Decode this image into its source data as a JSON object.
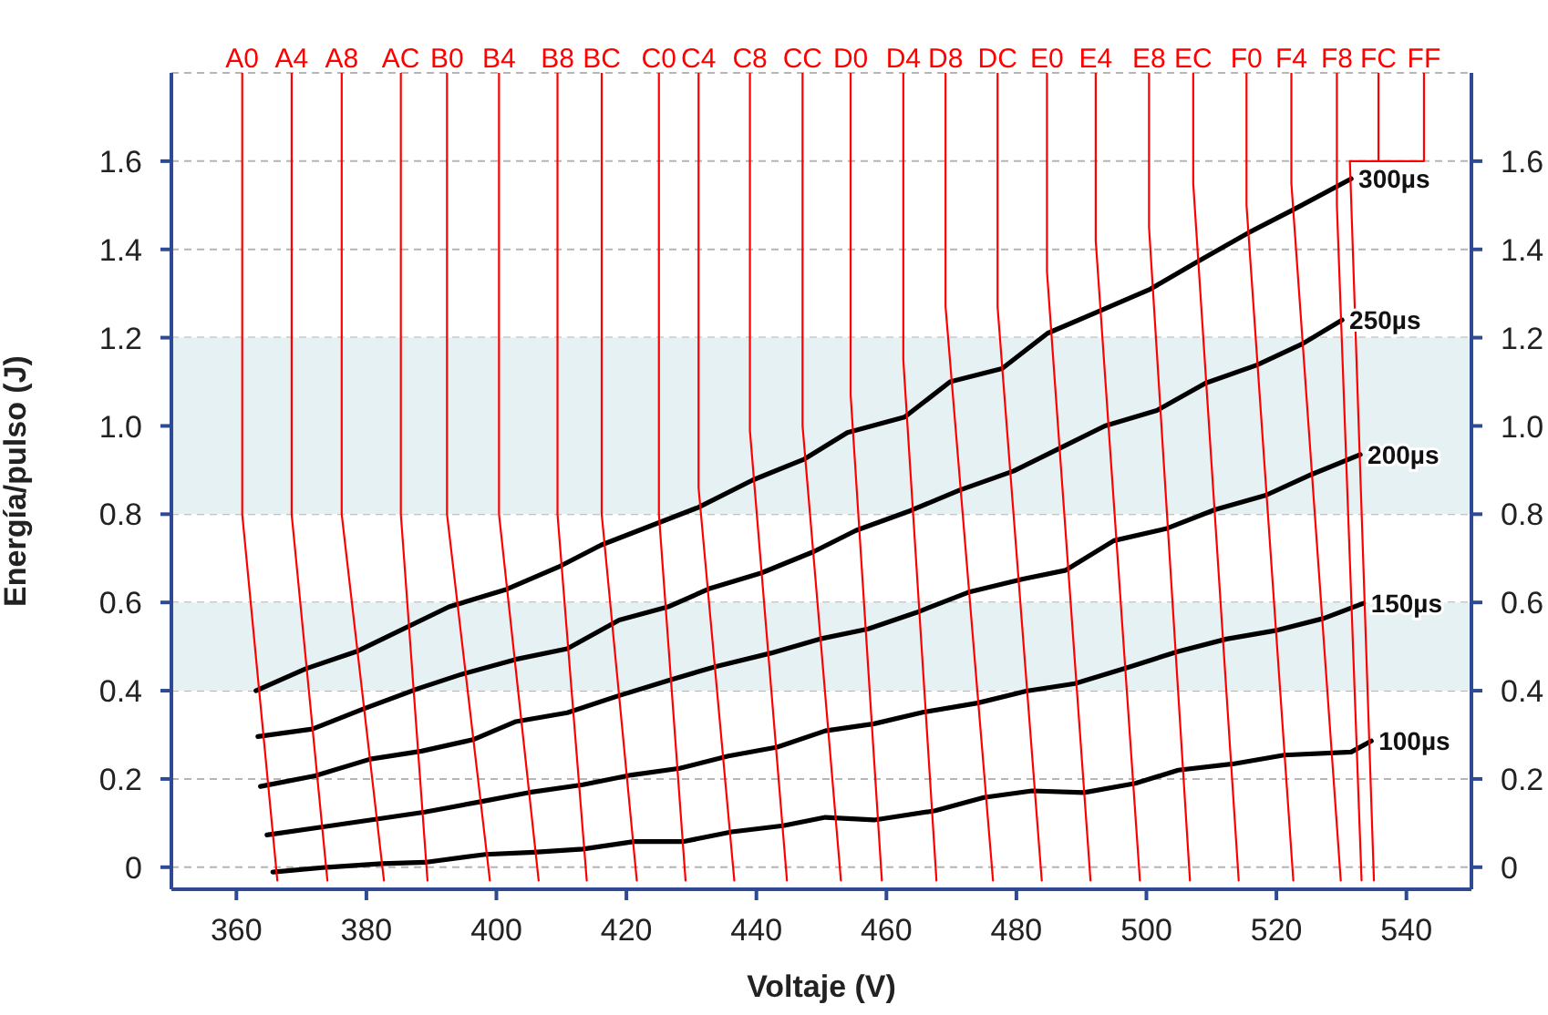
{
  "chart_data": {
    "type": "line",
    "xlabel": "Voltaje (V)",
    "ylabel": "Energía/pulso (J)",
    "xlim": [
      350,
      550
    ],
    "xticks": [
      360,
      380,
      400,
      420,
      440,
      460,
      480,
      500,
      520,
      540
    ],
    "ylim": [
      -0.05,
      1.8
    ],
    "yticks": [
      0,
      0.2,
      0.4,
      0.6,
      0.8,
      {
        "value": 1,
        "label": "1.0"
      },
      1.2,
      1.4,
      1.6
    ],
    "y2lim": [
      -0.05,
      1.8
    ],
    "y2ticks": [
      0,
      0.2,
      0.4,
      0.6,
      0.8,
      {
        "value": 1,
        "label": "1.0"
      },
      1.2,
      1.4,
      1.6
    ],
    "grid": "y",
    "bands": [
      {
        "axis": "y",
        "from": 0.4,
        "to": 0.6,
        "color": "#e6f1f3"
      },
      {
        "axis": "y",
        "from": 0.8,
        "to": 1.2,
        "color": "#e6f1f3"
      }
    ],
    "series": [
      {
        "name": "300µs",
        "color": "#000000",
        "x": [
          363.0,
          370.7,
          378.7,
          392.7,
          401.6,
          409.5,
          416.1,
          431.0,
          439.4,
          447.4,
          454.0,
          462.8,
          469.8,
          477.8,
          484.8,
          492.7,
          500.6,
          507.6,
          516.0,
          522.6,
          531.5
        ],
        "values": [
          0.4,
          0.45,
          0.49,
          0.59,
          0.63,
          0.68,
          0.73,
          0.815,
          0.877,
          0.925,
          0.985,
          1.02,
          1.1,
          1.13,
          1.21,
          1.26,
          1.31,
          1.37,
          1.44,
          1.49,
          1.56
        ]
      },
      {
        "name": "250µs",
        "color": "#000000",
        "x": [
          363.3,
          371.7,
          379.6,
          388.0,
          394.6,
          403.0,
          410.9,
          418.9,
          426.4,
          432.9,
          440.8,
          448.8,
          455.3,
          463.7,
          471.2,
          479.6,
          486.2,
          493.6,
          501.6,
          509.1,
          517.0,
          524.0,
          530.1
        ],
        "values": [
          0.296,
          0.313,
          0.359,
          0.405,
          0.437,
          0.471,
          0.495,
          0.56,
          0.59,
          0.632,
          0.667,
          0.715,
          0.763,
          0.808,
          0.854,
          0.898,
          0.946,
          1.0,
          1.035,
          1.097,
          1.138,
          1.186,
          1.24
        ]
      },
      {
        "name": "200µs",
        "color": "#000000",
        "x": [
          363.7,
          372.1,
          380.6,
          388.5,
          396.4,
          403.0,
          410.9,
          418.9,
          426.4,
          433.8,
          442.2,
          449.7,
          457.2,
          464.6,
          472.6,
          481.0,
          487.6,
          495.0,
          503.0,
          510.5,
          518.4,
          525.4,
          532.9
        ],
        "values": [
          0.183,
          0.207,
          0.245,
          0.263,
          0.289,
          0.33,
          0.35,
          0.389,
          0.423,
          0.455,
          0.485,
          0.517,
          0.54,
          0.577,
          0.623,
          0.653,
          0.673,
          0.74,
          0.767,
          0.81,
          0.843,
          0.89,
          0.935
        ]
      },
      {
        "name": "150µs",
        "color": "#000000",
        "x": [
          364.7,
          373.1,
          380.6,
          389.0,
          397.4,
          404.9,
          413.3,
          420.8,
          428.2,
          435.7,
          443.2,
          450.6,
          458.1,
          465.6,
          474.0,
          481.5,
          489.0,
          497.4,
          504.9,
          512.3,
          519.8,
          527.3,
          533.4
        ],
        "values": [
          0.073,
          0.091,
          0.107,
          0.125,
          0.148,
          0.169,
          0.187,
          0.209,
          0.224,
          0.252,
          0.272,
          0.309,
          0.325,
          0.351,
          0.372,
          0.399,
          0.416,
          0.454,
          0.489,
          0.517,
          0.536,
          0.564,
          0.598
        ]
      },
      {
        "name": "100µs",
        "color": "#000000",
        "x": [
          365.6,
          374.0,
          382.4,
          389.0,
          398.3,
          405.8,
          413.3,
          421.2,
          428.7,
          436.2,
          444.1,
          450.6,
          458.1,
          467.5,
          475.0,
          482.4,
          490.4,
          498.3,
          504.9,
          513.3,
          521.2,
          531.5,
          534.6
        ],
        "values": [
          -0.011,
          0.0,
          0.008,
          0.011,
          0.029,
          0.034,
          0.041,
          0.058,
          0.058,
          0.08,
          0.094,
          0.113,
          0.107,
          0.128,
          0.158,
          0.173,
          0.169,
          0.19,
          0.22,
          0.234,
          0.254,
          0.261,
          0.286
        ]
      },
      {
        "name": "A0",
        "color": "#ff0000",
        "x": [
          360.9,
          360.9,
          366.3
        ],
        "values": [
          1.8,
          0.8,
          -0.03
        ]
      },
      {
        "name": "A4",
        "color": "#ff0000",
        "x": [
          368.5,
          368.5,
          374.0
        ],
        "values": [
          1.8,
          0.8,
          -0.03
        ]
      },
      {
        "name": "A8",
        "color": "#ff0000",
        "x": [
          376.2,
          376.2,
          382.7
        ],
        "values": [
          1.8,
          0.8,
          -0.03
        ]
      },
      {
        "name": "AC",
        "color": "#ff0000",
        "x": [
          385.3,
          385.3,
          389.4
        ],
        "values": [
          1.8,
          0.8,
          -0.03
        ]
      },
      {
        "name": "B0",
        "color": "#ff0000",
        "x": [
          392.4,
          392.4,
          399.0
        ],
        "values": [
          1.8,
          0.8,
          -0.03
        ]
      },
      {
        "name": "B4",
        "color": "#ff0000",
        "x": [
          400.4,
          400.4,
          406.5
        ],
        "values": [
          1.8,
          0.8,
          -0.03
        ]
      },
      {
        "name": "B8",
        "color": "#ff0000",
        "x": [
          409.4,
          409.4,
          413.9
        ],
        "values": [
          1.8,
          0.8,
          -0.03
        ]
      },
      {
        "name": "BC",
        "color": "#ff0000",
        "x": [
          416.2,
          416.2,
          421.6
        ],
        "values": [
          1.8,
          0.8,
          -0.03
        ]
      },
      {
        "name": "C0",
        "color": "#ff0000",
        "x": [
          425.0,
          425.0,
          429.1
        ],
        "values": [
          1.8,
          0.8,
          -0.03
        ]
      },
      {
        "name": "C4",
        "color": "#ff0000",
        "x": [
          431.1,
          431.1,
          436.6
        ],
        "values": [
          1.8,
          0.86,
          -0.03
        ]
      },
      {
        "name": "C8",
        "color": "#ff0000",
        "x": [
          439.0,
          439.0,
          444.7
        ],
        "values": [
          1.8,
          0.99,
          -0.03
        ]
      },
      {
        "name": "CC",
        "color": "#ff0000",
        "x": [
          447.1,
          447.1,
          453.0
        ],
        "values": [
          1.8,
          1.0,
          -0.03
        ]
      },
      {
        "name": "D0",
        "color": "#ff0000",
        "x": [
          454.5,
          454.5,
          459.3
        ],
        "values": [
          1.8,
          1.07,
          -0.03
        ]
      },
      {
        "name": "D4",
        "color": "#ff0000",
        "x": [
          462.6,
          462.6,
          467.7
        ],
        "values": [
          1.8,
          1.15,
          -0.03
        ]
      },
      {
        "name": "D8",
        "color": "#ff0000",
        "x": [
          469.1,
          469.1,
          476.4
        ],
        "values": [
          1.8,
          1.27,
          -0.03
        ]
      },
      {
        "name": "DC",
        "color": "#ff0000",
        "x": [
          477.1,
          477.1,
          483.9
        ],
        "values": [
          1.8,
          1.27,
          -0.03
        ]
      },
      {
        "name": "E0",
        "color": "#ff0000",
        "x": [
          484.7,
          484.7,
          491.4
        ],
        "values": [
          1.8,
          1.35,
          -0.03
        ]
      },
      {
        "name": "E4",
        "color": "#ff0000",
        "x": [
          492.2,
          492.2,
          499.0
        ],
        "values": [
          1.8,
          1.42,
          -0.03
        ]
      },
      {
        "name": "E8",
        "color": "#ff0000",
        "x": [
          500.4,
          500.4,
          506.7
        ],
        "values": [
          1.8,
          1.45,
          -0.03
        ]
      },
      {
        "name": "EC",
        "color": "#ff0000",
        "x": [
          507.2,
          507.2,
          514.2
        ],
        "values": [
          1.8,
          1.55,
          -0.03
        ]
      },
      {
        "name": "F0",
        "color": "#ff0000",
        "x": [
          515.4,
          515.4,
          522.6
        ],
        "values": [
          1.8,
          1.5,
          -0.03
        ]
      },
      {
        "name": "F4",
        "color": "#ff0000",
        "x": [
          522.3,
          522.3,
          529.9
        ],
        "values": [
          1.8,
          1.55,
          -0.03
        ]
      },
      {
        "name": "F8",
        "color": "#ff0000",
        "x": [
          529.3,
          529.3,
          533.1
        ],
        "values": [
          1.8,
          1.5,
          -0.03
        ]
      },
      {
        "name": "FC",
        "color": "#ff0000",
        "x": [
          535.7,
          535.7,
          531.3,
          535.0
        ],
        "values": [
          1.8,
          1.6,
          1.6,
          -0.03
        ]
      },
      {
        "name": "FF",
        "color": "#ff0000",
        "x": [
          542.7,
          542.7,
          535.7
        ],
        "values": [
          1.8,
          1.6,
          1.6
        ]
      }
    ]
  }
}
